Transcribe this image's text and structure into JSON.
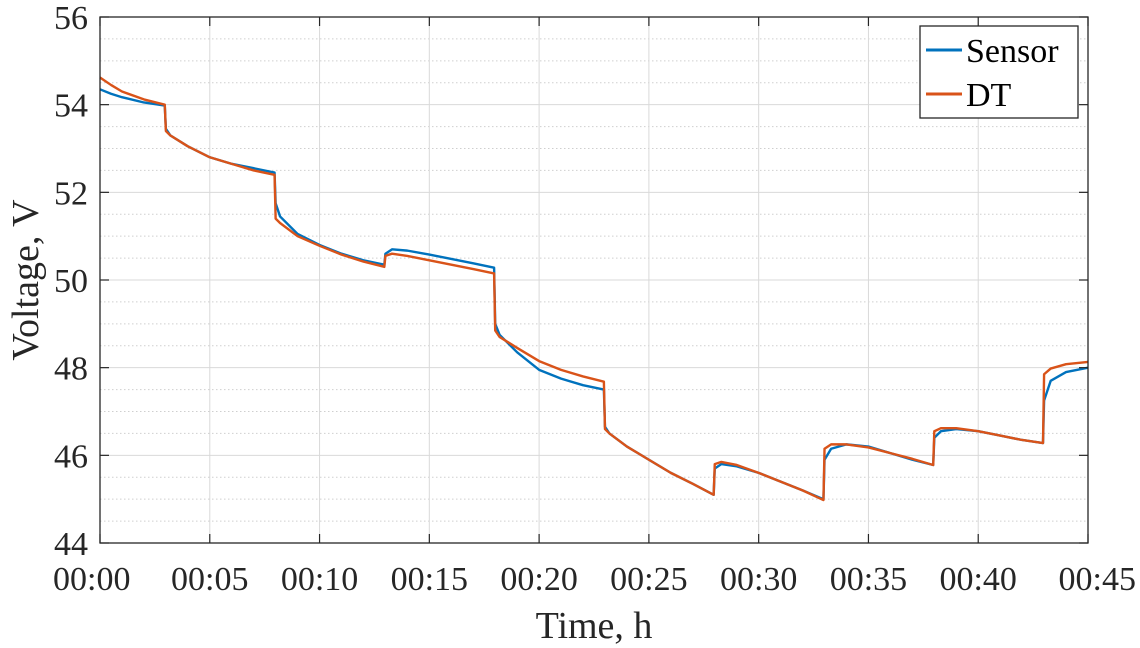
{
  "chart_data": {
    "type": "line",
    "xlabel": "Time, h",
    "ylabel": "Voltage, V",
    "xlim": [
      0,
      45
    ],
    "ylim": [
      44,
      56
    ],
    "x_ticks": [
      0,
      5,
      10,
      15,
      20,
      25,
      30,
      35,
      40,
      45
    ],
    "x_tick_labels": [
      "00:00",
      "00:05",
      "00:10",
      "00:15",
      "00:20",
      "00:25",
      "00:30",
      "00:35",
      "00:40",
      "00:45"
    ],
    "y_ticks": [
      44,
      46,
      48,
      50,
      52,
      54,
      56
    ],
    "y_tick_labels": [
      "44",
      "46",
      "48",
      "50",
      "52",
      "54",
      "56"
    ],
    "y_minor_step": 0.5,
    "grid": true,
    "legend_position": "top-right",
    "series": [
      {
        "name": "Sensor",
        "color": "#0072BD",
        "x": [
          0,
          0.5,
          1,
          2,
          2.95,
          3.0,
          3.2,
          4,
          5,
          6,
          7,
          7.95,
          8.0,
          8.2,
          9,
          10,
          11,
          12,
          12.95,
          13.0,
          13.3,
          14,
          15,
          16,
          17,
          17.95,
          18.0,
          18.2,
          19,
          20,
          21,
          22,
          22.95,
          23.0,
          23.2,
          24,
          25,
          26,
          27,
          27.95,
          28.0,
          28.3,
          29,
          30,
          31,
          32,
          32.95,
          33.0,
          33.3,
          34,
          35,
          36,
          37,
          37.95,
          38.0,
          38.3,
          39,
          40,
          41,
          42,
          42.95,
          43.0,
          43.3,
          44,
          45
        ],
        "y": [
          54.35,
          54.25,
          54.17,
          54.05,
          53.98,
          53.45,
          53.3,
          53.05,
          52.8,
          52.65,
          52.55,
          52.45,
          51.75,
          51.45,
          51.05,
          50.8,
          50.6,
          50.45,
          50.35,
          50.6,
          50.7,
          50.67,
          50.58,
          50.48,
          50.38,
          50.28,
          49.0,
          48.75,
          48.35,
          47.95,
          47.75,
          47.6,
          47.5,
          46.65,
          46.5,
          46.2,
          45.9,
          45.6,
          45.35,
          45.1,
          45.7,
          45.8,
          45.75,
          45.6,
          45.4,
          45.2,
          45.0,
          45.9,
          46.15,
          46.25,
          46.2,
          46.05,
          45.9,
          45.78,
          46.4,
          46.55,
          46.6,
          46.55,
          46.45,
          46.35,
          46.28,
          47.25,
          47.7,
          47.9,
          48.0
        ]
      },
      {
        "name": "DT",
        "color": "#D95319",
        "x": [
          0,
          0.5,
          1,
          2,
          2.95,
          3.0,
          3.2,
          4,
          5,
          6,
          7,
          7.95,
          8.0,
          8.2,
          9,
          10,
          11,
          12,
          12.95,
          13.0,
          13.3,
          14,
          15,
          16,
          17,
          17.95,
          18.0,
          18.2,
          19,
          20,
          21,
          22,
          22.95,
          23.0,
          23.2,
          24,
          25,
          26,
          27,
          27.95,
          28.0,
          28.3,
          29,
          30,
          31,
          32,
          32.95,
          33.0,
          33.3,
          34,
          35,
          36,
          37,
          37.95,
          38.0,
          38.3,
          39,
          40,
          41,
          42,
          42.95,
          43.0,
          43.3,
          44,
          45
        ],
        "y": [
          54.62,
          54.45,
          54.3,
          54.12,
          54.0,
          53.4,
          53.3,
          53.05,
          52.8,
          52.65,
          52.5,
          52.4,
          51.4,
          51.3,
          51.0,
          50.78,
          50.58,
          50.42,
          50.3,
          50.55,
          50.6,
          50.55,
          50.45,
          50.35,
          50.25,
          50.15,
          48.85,
          48.7,
          48.45,
          48.15,
          47.95,
          47.8,
          47.68,
          46.6,
          46.5,
          46.2,
          45.9,
          45.6,
          45.35,
          45.1,
          45.8,
          45.85,
          45.78,
          45.6,
          45.4,
          45.2,
          44.98,
          46.15,
          46.25,
          46.25,
          46.18,
          46.05,
          45.92,
          45.78,
          46.55,
          46.62,
          46.62,
          46.55,
          46.45,
          46.35,
          46.28,
          47.85,
          47.98,
          48.08,
          48.13
        ]
      }
    ]
  }
}
